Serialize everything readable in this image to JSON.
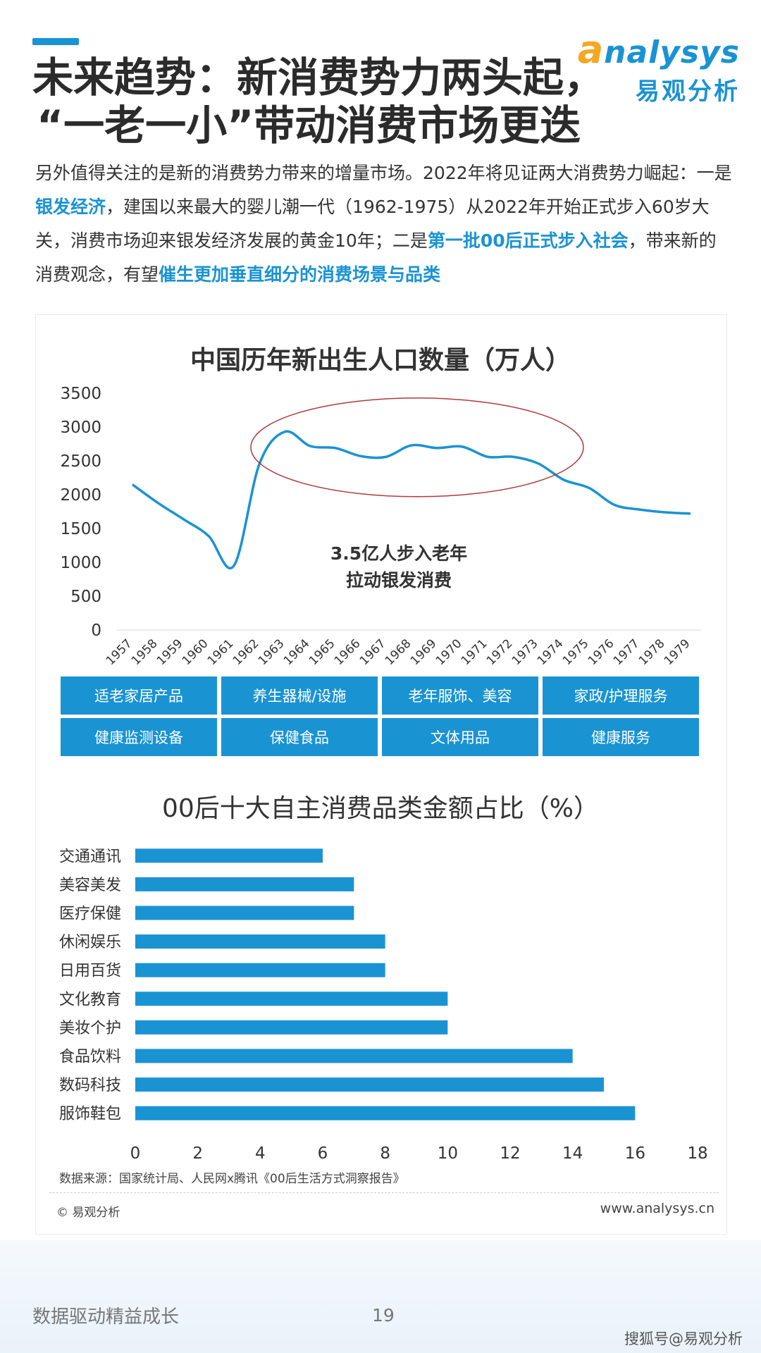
{
  "logo": {
    "en_first": "a",
    "en_rest": "nalysys",
    "cn": "易观分析"
  },
  "title": {
    "line1": "未来趋势：新消费势力两头起，",
    "line2": "“一老一小”带动消费市场更迭"
  },
  "intro": [
    {
      "text": "另外值得关注的是新的消费势力带来的增量市场。2022年将见证两大消费势力崛起：一是",
      "hl": false
    },
    {
      "text": "银发经济",
      "hl": true
    },
    {
      "text": "，建国以来最大的婴儿潮一代（1962-1975）从2022年开始正式步入60岁大关，消费市场迎来银发经济发展的黄金10年；二是",
      "hl": false
    },
    {
      "text": "第一批00后正式步入社会",
      "hl": true
    },
    {
      "text": "，带来新的消费观念，有望",
      "hl": false
    },
    {
      "text": "催生更加垂直细分的消费场景与品类",
      "hl": true
    }
  ],
  "chart_data": [
    {
      "type": "line",
      "title": "中国历年新出生人口数量（万人）",
      "x": [
        "1957",
        "1958",
        "1959",
        "1960",
        "1961",
        "1962",
        "1963",
        "1964",
        "1965",
        "1966",
        "1967",
        "1968",
        "1969",
        "1970",
        "1971",
        "1972",
        "1973",
        "1974",
        "1975",
        "1976",
        "1977",
        "1978",
        "1979"
      ],
      "values": [
        2150,
        1880,
        1640,
        1390,
        950,
        2450,
        2930,
        2720,
        2690,
        2570,
        2560,
        2730,
        2690,
        2710,
        2560,
        2560,
        2460,
        2220,
        2100,
        1850,
        1780,
        1740,
        1720
      ],
      "ylim": [
        0,
        3500
      ],
      "yticks": [
        0,
        500,
        1000,
        1500,
        2000,
        2500,
        3000,
        3500
      ],
      "annotation": {
        "line1": "3.5亿人步入老年",
        "line2": "拉动银发消费"
      },
      "grid": false,
      "colors": {
        "line": "#1a93d3",
        "ellipse": "#b23a3a"
      }
    },
    {
      "type": "bar",
      "orientation": "horizontal",
      "title": "00后十大自主消费品类金额占比（%）",
      "categories": [
        "交通通讯",
        "美容美发",
        "医疗保健",
        "休闲娱乐",
        "日用百货",
        "文化教育",
        "美妆个护",
        "食品饮料",
        "数码科技",
        "服饰鞋包"
      ],
      "values": [
        6,
        7,
        7,
        8,
        8,
        10,
        10,
        14,
        15,
        16
      ],
      "xlim": [
        0,
        18
      ],
      "xticks": [
        0,
        2,
        4,
        6,
        8,
        10,
        12,
        14,
        16,
        18
      ],
      "grid": false,
      "colors": {
        "bar": "#1a93d3"
      }
    }
  ],
  "tags": [
    "适老家居产品",
    "养生器械/设施",
    "老年服饰、美容",
    "家政/护理服务",
    "健康监测设备",
    "保健食品",
    "文体用品",
    "健康服务"
  ],
  "source": "数据来源：国家统计局、人民网x腾讯《00后生活方式洞察报告》",
  "copyright": "© 易观分析",
  "site": "www.analysys.cn",
  "footer": {
    "slogan": "数据驱动精益成长",
    "page": "19",
    "watermark": "搜狐号@易观分析"
  }
}
